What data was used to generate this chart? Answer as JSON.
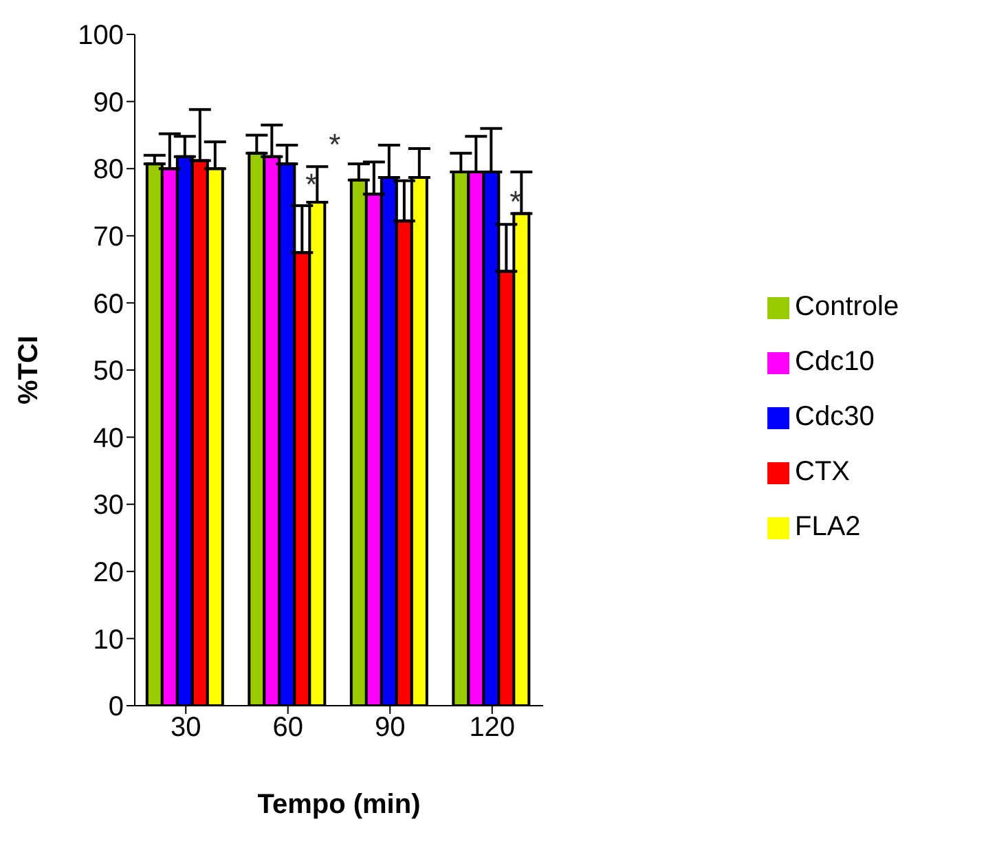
{
  "chart_data": {
    "type": "bar",
    "xlabel": "Tempo (min)",
    "ylabel": "%TCI",
    "categories": [
      "30",
      "60",
      "90",
      "120"
    ],
    "series": [
      {
        "name": "Controle",
        "color": "#99cc00",
        "values": [
          80.7,
          82.3,
          78.3,
          79.5
        ],
        "errors": [
          [
            80.7,
            82
          ],
          [
            82.3,
            85
          ],
          [
            78.3,
            80.7
          ],
          [
            79.5,
            82.3
          ]
        ]
      },
      {
        "name": "Cdc10",
        "color": "#ff00ff",
        "values": [
          80,
          81.8,
          76.2,
          79.5
        ],
        "errors": [
          [
            80,
            85.2
          ],
          [
            81.8,
            86.5
          ],
          [
            76.2,
            81
          ],
          [
            79.5,
            84.8
          ]
        ]
      },
      {
        "name": "Cdc30",
        "color": "#0000ff",
        "values": [
          81.8,
          80.7,
          78.7,
          79.5
        ],
        "errors": [
          [
            81.8,
            84.8
          ],
          [
            80.7,
            83.5
          ],
          [
            78.7,
            83.5
          ],
          [
            79.5,
            86
          ]
        ]
      },
      {
        "name": "CTX",
        "color": "#ff0000",
        "values": [
          81.2,
          67.5,
          72.2,
          64.7
        ],
        "errors": [
          [
            81.2,
            88.8
          ],
          [
            67.5,
            74.5
          ],
          [
            72.2,
            78.2
          ],
          [
            64.7,
            71.7
          ]
        ]
      },
      {
        "name": "FLA2",
        "color": "#ffff00",
        "values": [
          80,
          75,
          78.7,
          73.3
        ],
        "errors": [
          [
            80,
            84
          ],
          [
            75,
            80.3
          ],
          [
            78.7,
            83
          ],
          [
            73.3,
            79.5
          ]
        ]
      }
    ],
    "ylim": [
      0,
      100
    ],
    "yticks": [
      0,
      10,
      20,
      30,
      40,
      50,
      60,
      70,
      80,
      90,
      100
    ],
    "grid": false,
    "legend": "right",
    "annotations": [
      {
        "text": "*",
        "x": "60",
        "y": 76.5
      },
      {
        "text": "*",
        "x": "60",
        "y": 82.5
      },
      {
        "text": "*",
        "x": "120",
        "y": 74
      }
    ]
  }
}
